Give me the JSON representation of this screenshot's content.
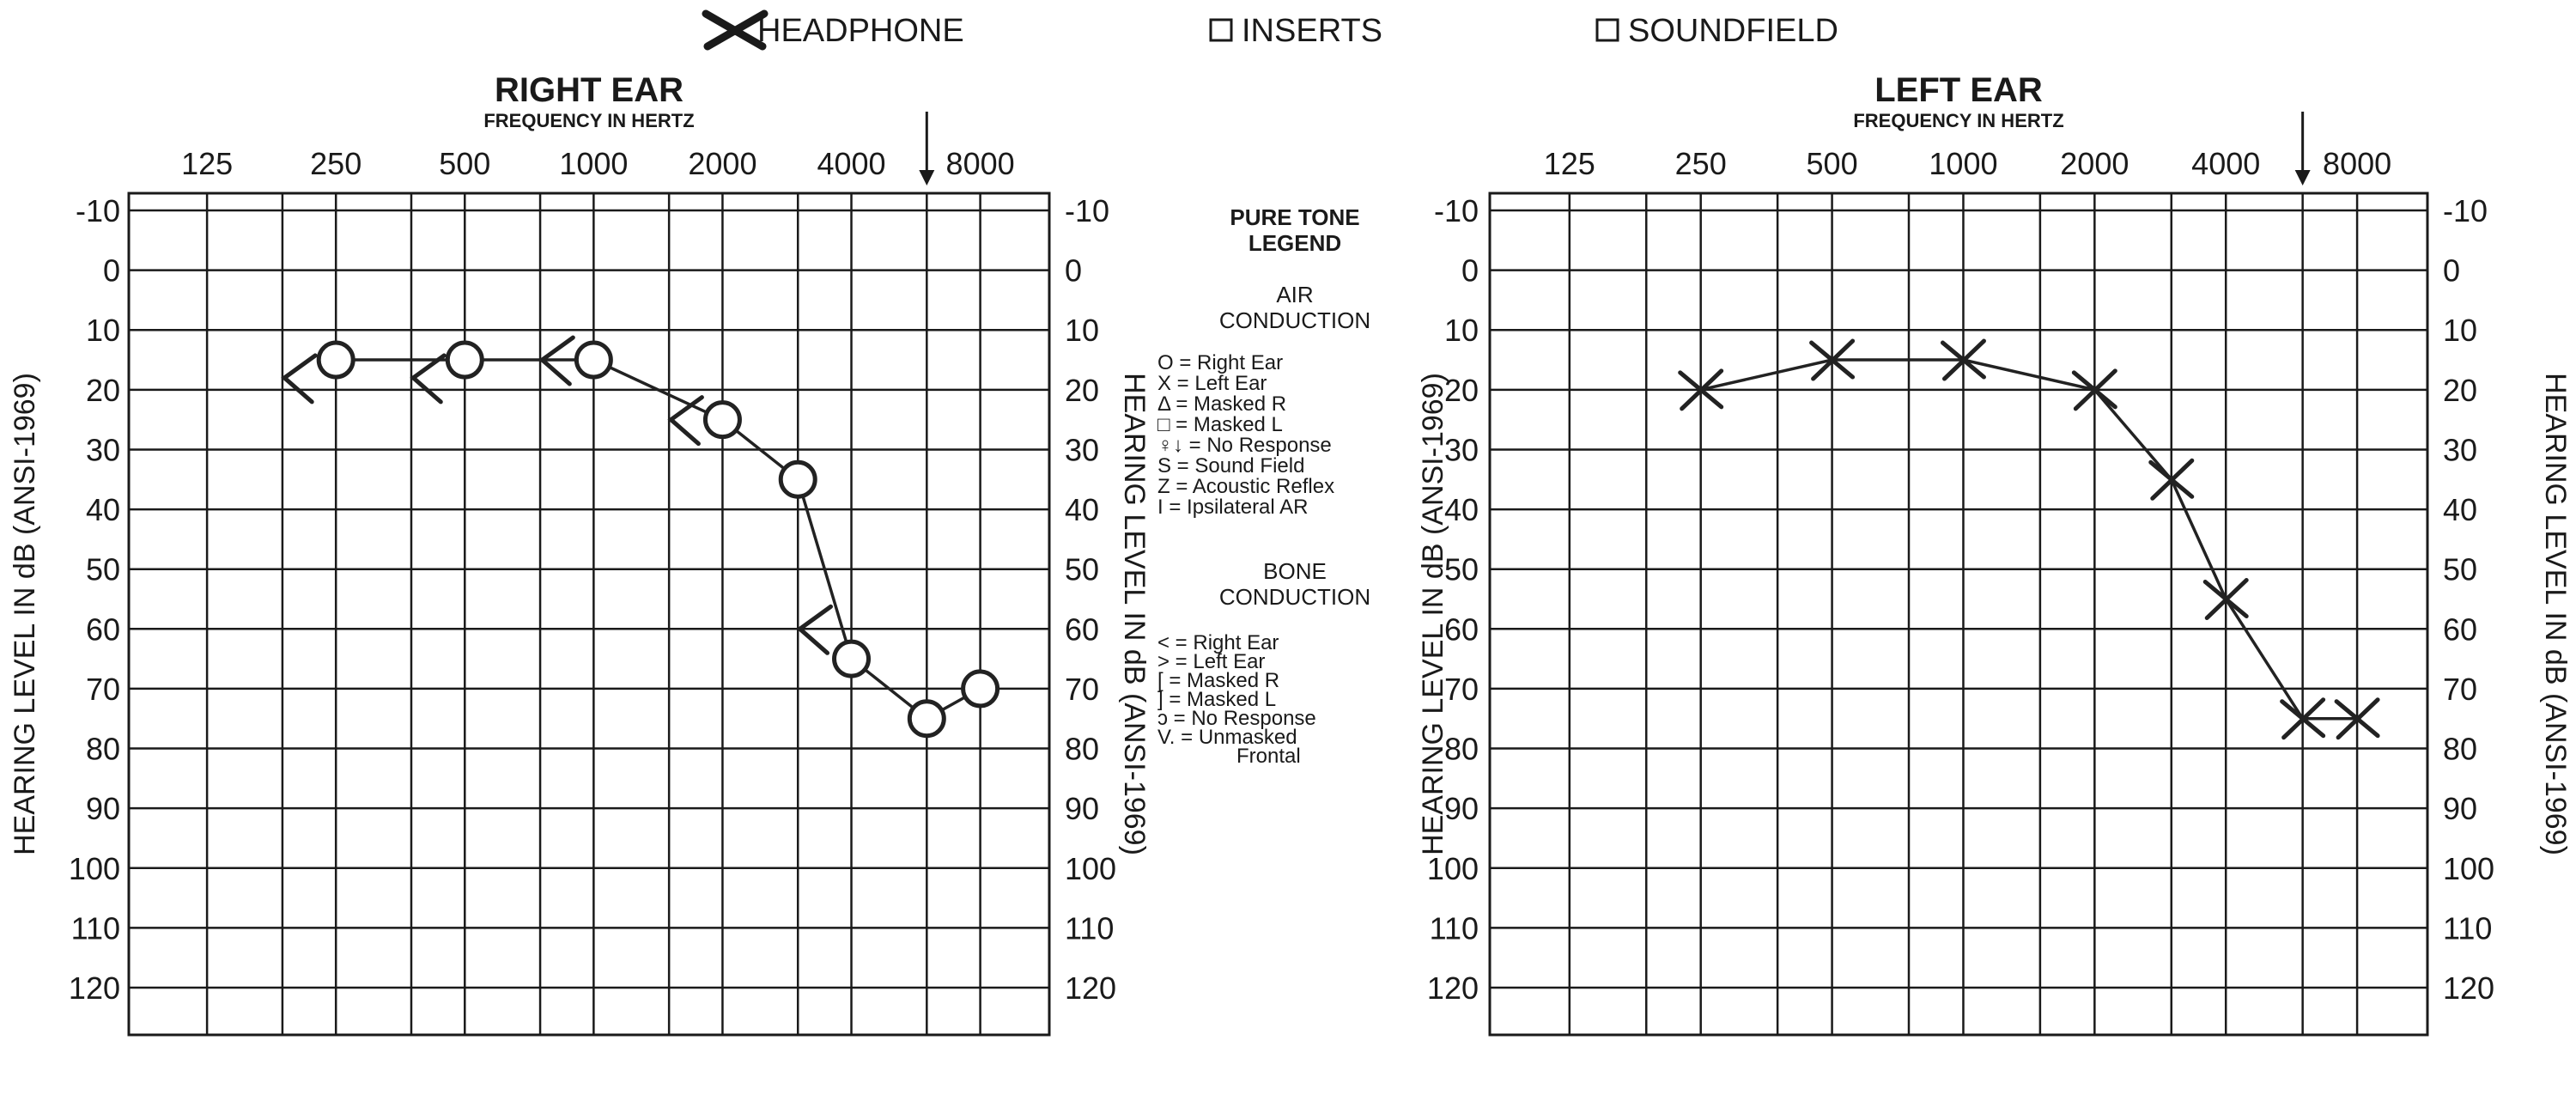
{
  "header": {
    "options": [
      {
        "label": "HEADPHONE",
        "checked": true
      },
      {
        "label": "INSERTS",
        "checked": false
      },
      {
        "label": "SOUNDFIELD",
        "checked": false
      }
    ]
  },
  "y_axis_title": "HEARING LEVEL IN dB (ANSI-1969)",
  "legend": {
    "title_lines": [
      "PURE TONE",
      "LEGEND"
    ],
    "air_title": [
      "AIR",
      "CONDUCTION"
    ],
    "air_items": [
      "O = Right Ear",
      "X = Left Ear",
      "Δ = Masked R",
      "□ = Masked L",
      "♀↓ = No Response",
      "S = Sound Field",
      "Z = Acoustic Reflex",
      "I = Ipsilateral AR"
    ],
    "bone_title": [
      "BONE",
      "CONDUCTION"
    ],
    "bone_items": [
      "< = Right Ear",
      "> = Left Ear",
      "[ = Masked R",
      "] = Masked L",
      "ↄ = No Response",
      "V. = Unmasked",
      "Frontal"
    ]
  },
  "chart_data": [
    {
      "type": "line",
      "title": "RIGHT EAR",
      "subtitle": "FREQUENCY IN HERTZ",
      "xlabel": "FREQUENCY IN HERTZ",
      "ylabel": "HEARING LEVEL IN dB (ANSI-1969)",
      "x_scale": "log2",
      "x_ticks": [
        125,
        250,
        500,
        1000,
        2000,
        4000,
        8000
      ],
      "x_tick_labels": [
        "125",
        "250",
        "500",
        "1000",
        "2000",
        "4000",
        "8000"
      ],
      "y_ticks": [
        -10,
        0,
        10,
        20,
        30,
        40,
        50,
        60,
        70,
        80,
        90,
        100,
        110,
        120
      ],
      "y_tick_labels": [
        "-10",
        "0",
        "10",
        "20",
        "30",
        "40",
        "50",
        "60",
        "70",
        "80",
        "90",
        "100",
        "110",
        "120"
      ],
      "ylim": [
        -10,
        120
      ],
      "y_inverted": true,
      "grid": true,
      "arrow_marker_frequency": 6000,
      "series": [
        {
          "name": "Right Ear",
          "color": "#222222",
          "x": [
            250,
            500,
            1000,
            2000,
            3000,
            4000,
            6000,
            8000
          ],
          "values": [
            15,
            15,
            15,
            25,
            35,
            65,
            75,
            70
          ]
        },
        {
          "name": "Right Ear",
          "color": "#222222",
          "x": [
            250,
            500,
            1000,
            2000,
            4000
          ],
          "values": [
            18,
            18,
            15,
            25,
            60
          ]
        }
      ]
    },
    {
      "type": "line",
      "title": "LEFT EAR",
      "subtitle": "FREQUENCY IN HERTZ",
      "xlabel": "FREQUENCY IN HERTZ",
      "ylabel": "HEARING LEVEL IN dB (ANSI-1969)",
      "x_scale": "log2",
      "x_ticks": [
        125,
        250,
        500,
        1000,
        2000,
        4000,
        8000
      ],
      "x_tick_labels": [
        "125",
        "250",
        "500",
        "1000",
        "2000",
        "4000",
        "8000"
      ],
      "y_ticks": [
        -10,
        0,
        10,
        20,
        30,
        40,
        50,
        60,
        70,
        80,
        90,
        100,
        110,
        120
      ],
      "y_tick_labels": [
        "-10",
        "0",
        "10",
        "20",
        "30",
        "40",
        "50",
        "60",
        "70",
        "80",
        "90",
        "100",
        "110",
        "120"
      ],
      "ylim": [
        -10,
        120
      ],
      "y_inverted": true,
      "grid": true,
      "arrow_marker_frequency": 6000,
      "series": [
        {
          "name": "Left Ear",
          "color": "#222222",
          "x": [
            250,
            500,
            1000,
            2000,
            3000,
            4000,
            6000,
            8000
          ],
          "values": [
            20,
            15,
            15,
            20,
            35,
            55,
            75,
            75
          ]
        }
      ]
    }
  ]
}
